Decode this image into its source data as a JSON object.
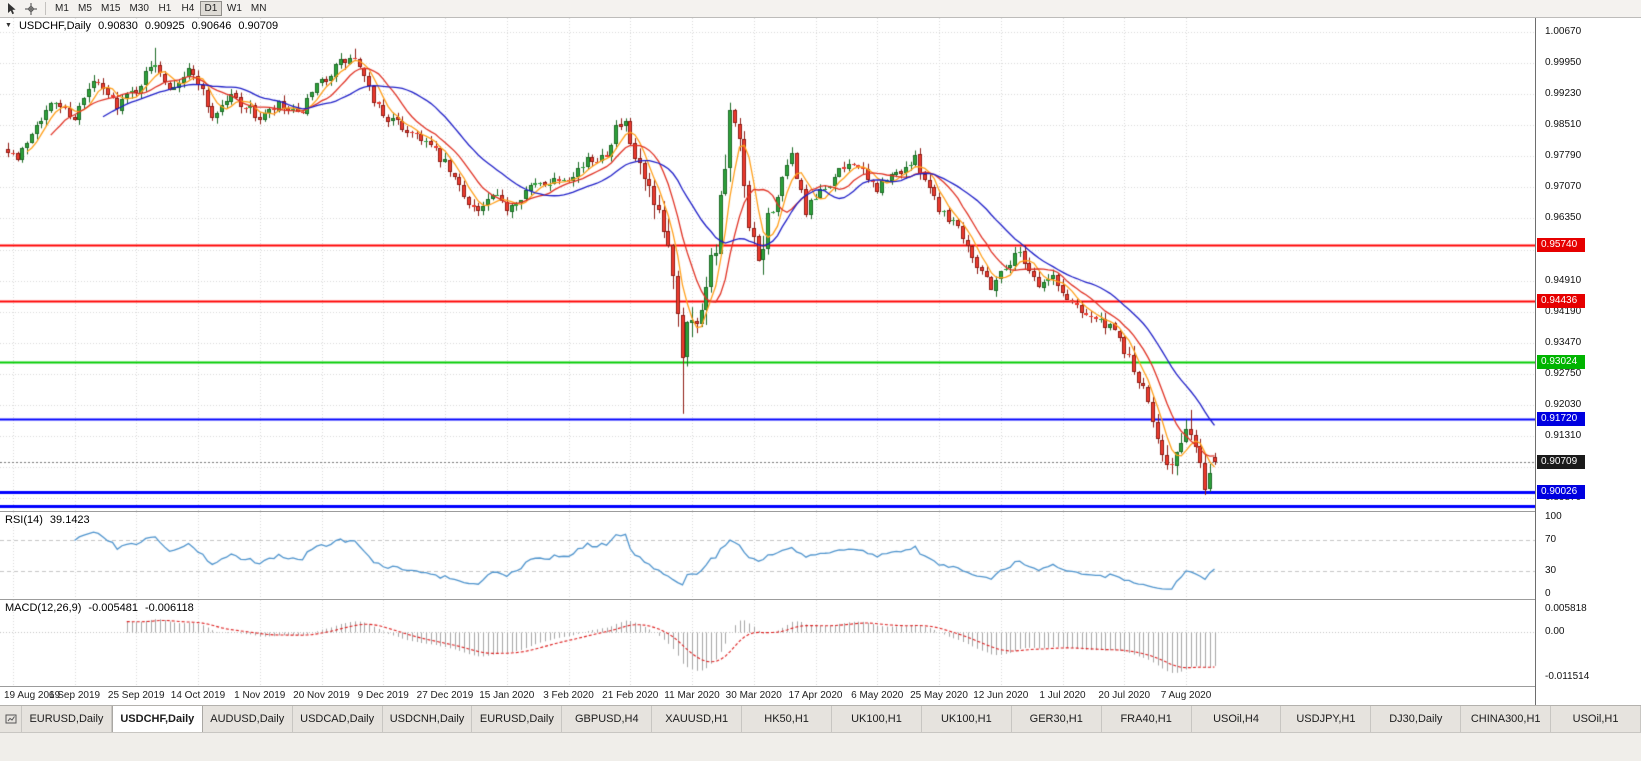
{
  "toolbar": {
    "icons": [
      "cursor-icon",
      "crosshair-icon"
    ],
    "timeframes": [
      {
        "label": "M1",
        "active": false
      },
      {
        "label": "M5",
        "active": false
      },
      {
        "label": "M15",
        "active": false
      },
      {
        "label": "M30",
        "active": false
      },
      {
        "label": "H1",
        "active": false
      },
      {
        "label": "H4",
        "active": false
      },
      {
        "label": "D1",
        "active": true
      },
      {
        "label": "W1",
        "active": false
      },
      {
        "label": "MN",
        "active": false
      }
    ]
  },
  "chart_header": {
    "symbol": "USDCHF,Daily",
    "open": "0.90830",
    "high": "0.90925",
    "low": "0.90646",
    "close": "0.90709"
  },
  "indicators": {
    "rsi_label": "RSI(14)",
    "rsi_value": "39.1423",
    "macd_label": "MACD(12,26,9)",
    "macd_main": "-0.005481",
    "macd_signal": "-0.006118"
  },
  "chart_data": {
    "type": "candlestick",
    "symbol": "USDCHF",
    "timeframe": "Daily",
    "bars_total": 255,
    "seed": 7,
    "price_axis": {
      "max": 1.0099,
      "min": 0.8958,
      "labels": [
        "1.00670",
        "0.99950",
        "0.99230",
        "0.98510",
        "0.97790",
        "0.97070",
        "0.96350",
        "0.95630",
        "0.94910",
        "0.94190",
        "0.93470",
        "0.92750",
        "0.92030",
        "0.91310",
        "0.90590",
        "0.89870"
      ]
    },
    "x_axis": {
      "labels": [
        "19 Aug 2019",
        "6 Sep 2019",
        "25 Sep 2019",
        "14 Oct 2019",
        "1 Nov 2019",
        "20 Nov 2019",
        "9 Dec 2019",
        "27 Dec 2019",
        "15 Jan 2020",
        "3 Feb 2020",
        "21 Feb 2020",
        "11 Mar 2020",
        "30 Mar 2020",
        "17 Apr 2020",
        "6 May 2020",
        "25 May 2020",
        "12 Jun 2020",
        "1 Jul 2020",
        "20 Jul 2020",
        "7 Aug 2020"
      ],
      "first_label_bar": 1,
      "bars_per_label": 13
    },
    "price_path_anchors": [
      [
        0,
        0.98
      ],
      [
        2,
        0.9768
      ],
      [
        6,
        0.986
      ],
      [
        10,
        0.9905
      ],
      [
        14,
        0.987
      ],
      [
        18,
        0.995
      ],
      [
        23,
        0.99
      ],
      [
        27,
        0.9935
      ],
      [
        31,
        0.9998
      ],
      [
        34,
        0.994
      ],
      [
        38,
        0.9975
      ],
      [
        40,
        0.9955
      ],
      [
        43,
        0.987
      ],
      [
        47,
        0.992
      ],
      [
        50,
        0.9895
      ],
      [
        53,
        0.9865
      ],
      [
        57,
        0.9895
      ],
      [
        61,
        0.987
      ],
      [
        64,
        0.992
      ],
      [
        66,
        0.995
      ],
      [
        70,
        0.9995
      ],
      [
        73,
        1.0005
      ],
      [
        76,
        0.993
      ],
      [
        79,
        0.9875
      ],
      [
        83,
        0.9845
      ],
      [
        87,
        0.9825
      ],
      [
        92,
        0.976
      ],
      [
        96,
        0.969
      ],
      [
        99,
        0.965
      ],
      [
        102,
        0.9685
      ],
      [
        105,
        0.966
      ],
      [
        109,
        0.97
      ],
      [
        113,
        0.972
      ],
      [
        118,
        0.9735
      ],
      [
        122,
        0.9765
      ],
      [
        126,
        0.979
      ],
      [
        128,
        0.9845
      ],
      [
        130,
        0.985
      ],
      [
        131,
        0.98
      ],
      [
        134,
        0.972
      ],
      [
        136,
        0.965
      ],
      [
        138,
        0.96
      ],
      [
        140,
        0.952
      ],
      [
        142,
        0.933
      ],
      [
        143,
        0.942
      ],
      [
        145,
        0.938
      ],
      [
        147,
        0.95
      ],
      [
        149,
        0.958
      ],
      [
        151,
        0.975
      ],
      [
        152,
        0.987
      ],
      [
        154,
        0.98
      ],
      [
        156,
        0.96
      ],
      [
        158,
        0.953
      ],
      [
        160,
        0.963
      ],
      [
        163,
        0.972
      ],
      [
        165,
        0.978
      ],
      [
        168,
        0.965
      ],
      [
        170,
        0.968
      ],
      [
        174,
        0.973
      ],
      [
        178,
        0.977
      ],
      [
        181,
        0.972
      ],
      [
        183,
        0.9705
      ],
      [
        187,
        0.974
      ],
      [
        191,
        0.977
      ],
      [
        194,
        0.971
      ],
      [
        196,
        0.966
      ],
      [
        200,
        0.962
      ],
      [
        204,
        0.953
      ],
      [
        207,
        0.948
      ],
      [
        209,
        0.951
      ],
      [
        213,
        0.956
      ],
      [
        217,
        0.948
      ],
      [
        220,
        0.95
      ],
      [
        222,
        0.946
      ],
      [
        226,
        0.9425
      ],
      [
        230,
        0.9395
      ],
      [
        233,
        0.937
      ],
      [
        235,
        0.933
      ],
      [
        238,
        0.926
      ],
      [
        241,
        0.917
      ],
      [
        243,
        0.91
      ],
      [
        245,
        0.906
      ],
      [
        247,
        0.911
      ],
      [
        249,
        0.915
      ],
      [
        251,
        0.906
      ],
      [
        252,
        0.901
      ],
      [
        253,
        0.906
      ],
      [
        254,
        0.90709
      ]
    ],
    "wick_overrides": [
      {
        "i": 31,
        "high": 1.003
      },
      {
        "i": 73,
        "high": 1.0028
      },
      {
        "i": 142,
        "low": 0.9183
      },
      {
        "i": 152,
        "high": 0.9901
      },
      {
        "i": 245,
        "low": 0.905
      },
      {
        "i": 249,
        "high": 0.9192
      },
      {
        "i": 252,
        "low": 0.9002
      }
    ],
    "volatility_zones": [
      {
        "from": 133,
        "to": 160,
        "mult": 2.4
      },
      {
        "from": 236,
        "to": 254,
        "mult": 1.5
      }
    ],
    "last_candle": {
      "open": 0.9083,
      "high": 0.90925,
      "low": 0.90646,
      "close": 0.90709
    },
    "current_price": 0.90709,
    "current_price_label": "0.90709",
    "h_lines": [
      {
        "price": 0.9574,
        "color": "#ff0000",
        "width": 2,
        "tag": "0.95740",
        "tag_color": "#e60000"
      },
      {
        "price": 0.94436,
        "color": "#ff0000",
        "width": 2,
        "tag": "0.94436",
        "tag_color": "#e60000"
      },
      {
        "price": 0.93024,
        "color": "#00cc00",
        "width": 2,
        "tag": "0.93024",
        "tag_color": "#00b400"
      },
      {
        "price": 0.9172,
        "color": "#0000ff",
        "width": 2,
        "tag": "0.91720",
        "tag_color": "#0000e0"
      },
      {
        "price": 0.90026,
        "color": "#0000ff",
        "width": 3,
        "tag": "0.90026",
        "tag_color": "#0000e0"
      },
      {
        "price": 0.897,
        "color": "#0000ff",
        "width": 3,
        "tag": ""
      }
    ],
    "moving_averages": [
      {
        "period": 5,
        "color": "#ff9f1a"
      },
      {
        "period": 10,
        "color": "#e03224"
      },
      {
        "period": 21,
        "color": "#1f1fc8"
      }
    ],
    "rsi": {
      "period": 14,
      "levels": [
        100,
        70,
        30,
        0
      ]
    },
    "macd": {
      "fast": 12,
      "slow": 26,
      "signal_period": 9,
      "axis_range": [
        -0.0125,
        0.0068
      ],
      "axis_labels": [
        "0.005818",
        "0.00",
        "-0.011514"
      ]
    }
  },
  "tabbar": {
    "tabs": [
      {
        "label": "EURUSD,Daily",
        "active": false
      },
      {
        "label": "USDCHF,Daily",
        "active": true
      },
      {
        "label": "AUDUSD,Daily",
        "active": false
      },
      {
        "label": "USDCAD,Daily",
        "active": false
      },
      {
        "label": "USDCNH,Daily",
        "active": false
      },
      {
        "label": "EURUSD,Daily",
        "active": false
      },
      {
        "label": "GBPUSD,H4",
        "active": false
      },
      {
        "label": "XAUUSD,H1",
        "active": false
      },
      {
        "label": "HK50,H1",
        "active": false
      },
      {
        "label": "UK100,H1",
        "active": false
      },
      {
        "label": "UK100,H1",
        "active": false
      },
      {
        "label": "GER30,H1",
        "active": false
      },
      {
        "label": "FRA40,H1",
        "active": false
      },
      {
        "label": "USOil,H4",
        "active": false
      },
      {
        "label": "USDJPY,H1",
        "active": false
      },
      {
        "label": "DJ30,Daily",
        "active": false
      },
      {
        "label": "CHINA300,H1",
        "active": false
      },
      {
        "label": "USOil,H1",
        "active": false
      }
    ]
  }
}
